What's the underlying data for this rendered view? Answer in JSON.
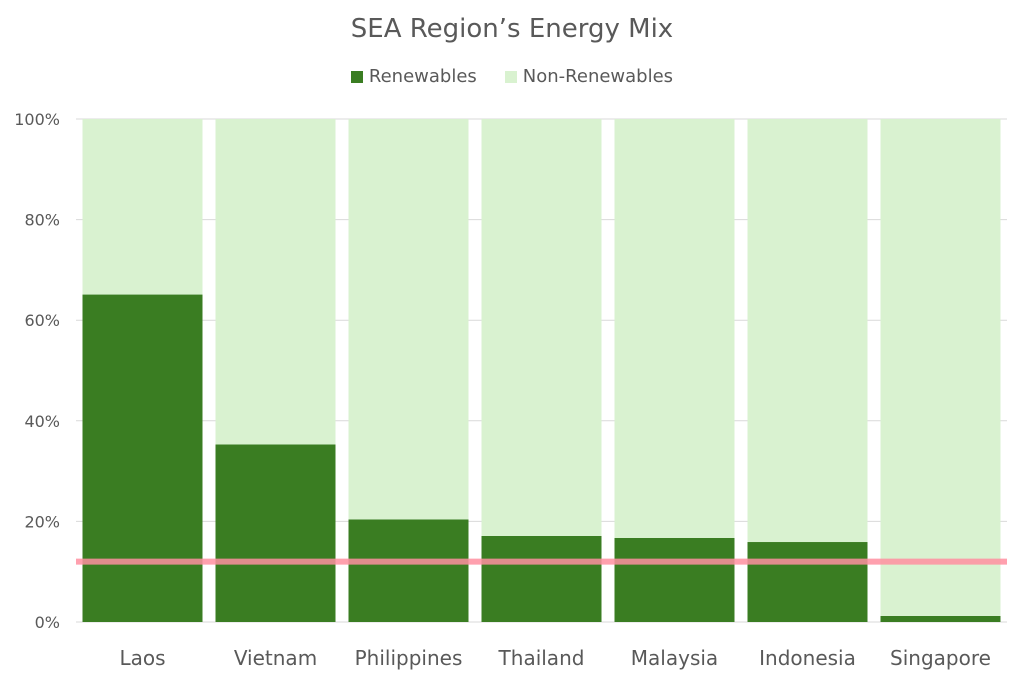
{
  "chart_data": {
    "type": "bar",
    "stacked": true,
    "title": "SEA Region’s Energy Mix",
    "categories": [
      "Laos",
      "Vietnam",
      "Philippines",
      "Thailand",
      "Malaysia",
      "Indonesia",
      "Singapore"
    ],
    "series": [
      {
        "name": "Renewables",
        "color": "#3a7d22",
        "values": [
          65.1,
          35.3,
          20.4,
          17.1,
          16.7,
          15.9,
          1.2
        ]
      },
      {
        "name": "Non-Renewables",
        "color": "#d9f2d0",
        "values": [
          34.9,
          64.7,
          79.6,
          82.9,
          83.3,
          84.1,
          98.8
        ]
      }
    ],
    "reference_line": {
      "value": 12,
      "color": "#ff8fa0"
    },
    "ylim": [
      0,
      100
    ],
    "yticks": [
      "0%",
      "20%",
      "40%",
      "60%",
      "80%",
      "100%"
    ],
    "ytick_values": [
      0,
      20,
      40,
      60,
      80,
      100
    ],
    "grid": true,
    "legend_position": "top"
  }
}
